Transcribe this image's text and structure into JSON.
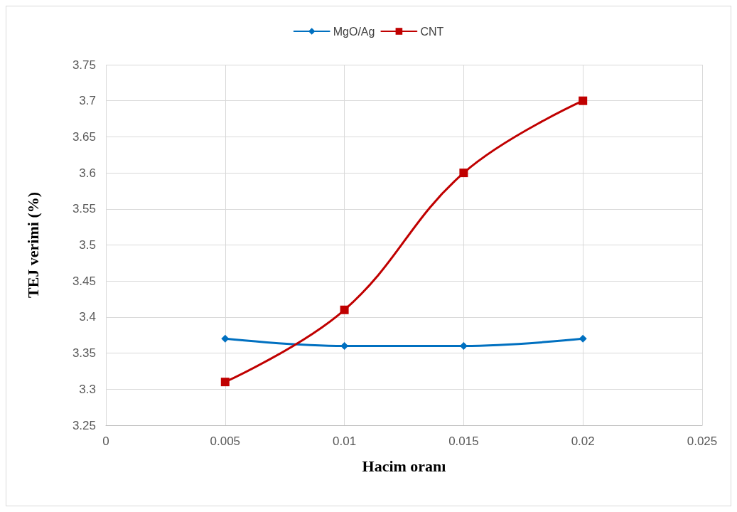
{
  "chart_data": {
    "type": "line",
    "xlabel": "Hacim oranı",
    "ylabel": "TEJ verimi (%)",
    "x": [
      0.005,
      0.01,
      0.015,
      0.02
    ],
    "series": [
      {
        "name": "MgO/Ag",
        "color": "#0070c0",
        "values": [
          3.37,
          3.36,
          3.36,
          3.37
        ],
        "marker": "diamond"
      },
      {
        "name": "CNT",
        "color": "#c00000",
        "values": [
          3.31,
          3.41,
          3.6,
          3.7
        ],
        "marker": "square"
      }
    ],
    "xlim": [
      0,
      0.025
    ],
    "xticks": [
      0,
      0.005,
      0.01,
      0.015,
      0.02,
      0.025
    ],
    "ylim": [
      3.25,
      3.75
    ],
    "yticks": [
      3.25,
      3.3,
      3.35,
      3.4,
      3.45,
      3.5,
      3.55,
      3.6,
      3.65,
      3.7,
      3.75
    ],
    "grid": true,
    "legend": "top",
    "line_style": "solid"
  }
}
